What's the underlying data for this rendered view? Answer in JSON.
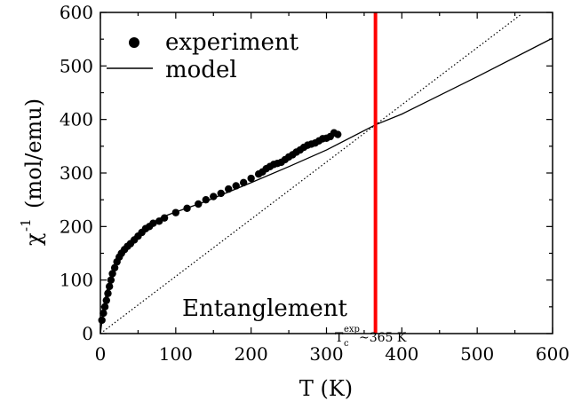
{
  "chart_data": {
    "type": "scatter",
    "xlabel": "T (K)",
    "ylabel_main": "χ",
    "ylabel_sup": "-1",
    "ylabel_unit": "(mol/emu)",
    "xlim": [
      0,
      600
    ],
    "ylim": [
      0,
      600
    ],
    "xticks": [
      0,
      100,
      200,
      300,
      400,
      500,
      600
    ],
    "yticks": [
      0,
      100,
      200,
      300,
      400,
      500,
      600
    ],
    "grid": false,
    "legend_position": "top-left",
    "series": [
      {
        "name": "experiment",
        "kind": "points",
        "color": "#000000",
        "x": [
          2,
          4,
          6,
          8,
          10,
          12,
          14,
          16,
          19,
          22,
          25,
          28,
          32,
          36,
          40,
          45,
          50,
          55,
          60,
          65,
          70,
          78,
          85,
          100,
          115,
          130,
          140,
          150,
          160,
          170,
          180,
          190,
          200,
          210,
          215,
          220,
          225,
          230,
          235,
          240,
          245,
          250,
          255,
          260,
          265,
          270,
          275,
          280,
          285,
          290,
          295,
          300,
          305,
          310,
          315
        ],
        "y": [
          25,
          38,
          50,
          62,
          75,
          88,
          100,
          112,
          123,
          134,
          143,
          150,
          157,
          163,
          168,
          175,
          182,
          189,
          196,
          200,
          206,
          210,
          216,
          226,
          234,
          242,
          250,
          256,
          262,
          270,
          276,
          282,
          290,
          298,
          302,
          308,
          312,
          316,
          318,
          320,
          325,
          330,
          334,
          339,
          343,
          348,
          352,
          354,
          356,
          360,
          364,
          365,
          368,
          375,
          372
        ]
      },
      {
        "name": "model",
        "kind": "line",
        "color": "#000000",
        "x": [
          0,
          5,
          10,
          20,
          30,
          40,
          50,
          60,
          70,
          80,
          90,
          100,
          110,
          120,
          130,
          140,
          150,
          200,
          250,
          300,
          365,
          400,
          500,
          600
        ],
        "y": [
          0,
          55,
          90,
          130,
          156,
          174,
          188,
          199,
          208,
          216,
          222,
          227,
          232,
          237,
          242,
          247,
          253,
          282,
          312,
          343,
          390,
          410,
          480,
          552
        ]
      },
      {
        "kind": "dotted-line",
        "color": "#000000",
        "x": [
          0,
          365,
          557
        ],
        "y": [
          0,
          390,
          595
        ]
      }
    ],
    "vertical_line": {
      "x": 365,
      "color": "#ff0000"
    },
    "annotations": {
      "region_label": "Entanglement",
      "tc_T": "T",
      "tc_sub": "c",
      "tc_sup": "exp",
      "tc_value": "~365 K"
    }
  }
}
